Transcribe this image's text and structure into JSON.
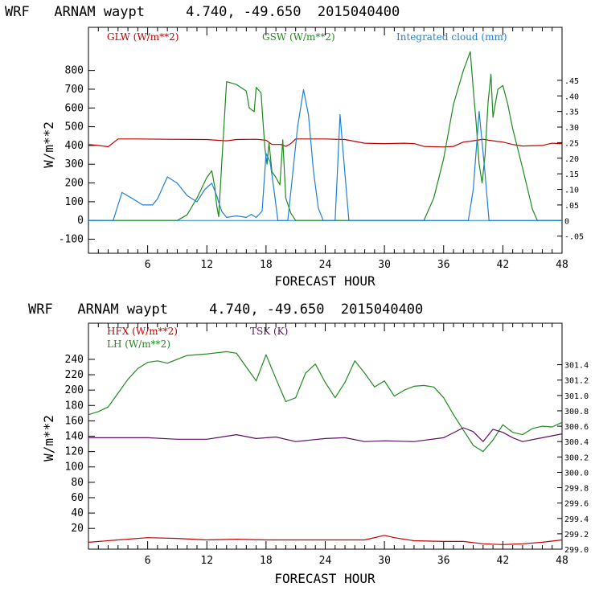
{
  "chart_data": [
    {
      "type": "line",
      "title": "WRF   ARNAM waypt     4.740, -49.650  2015040400",
      "xlabel": "FORECAST HOUR",
      "ylabel": "W/m**2",
      "xlim": [
        0,
        48
      ],
      "ylim": [
        -175,
        1030
      ],
      "y2lim": [
        -0.105,
        0.62
      ],
      "x_ticks": [
        6,
        12,
        18,
        24,
        30,
        36,
        42,
        48
      ],
      "y_ticks": [
        -100,
        0,
        100,
        200,
        300,
        400,
        500,
        600,
        700,
        800
      ],
      "y2_ticks": [
        -0.05,
        0,
        0.05,
        0.1,
        0.15,
        0.2,
        0.25,
        0.3,
        0.35,
        0.4,
        0.45
      ],
      "y2_tick_labels": [
        "-.05",
        "0",
        ".05",
        ".10",
        ".15",
        ".20",
        ".25",
        ".30",
        ".35",
        ".40",
        ".45"
      ],
      "series": [
        {
          "name": "GLW (W/m**2)",
          "color": "#c00000",
          "axis": "left",
          "points": [
            [
              0,
              405
            ],
            [
              1,
              400
            ],
            [
              2,
              393
            ],
            [
              3,
              435
            ],
            [
              5,
              435
            ],
            [
              8,
              433
            ],
            [
              12,
              432
            ],
            [
              13,
              428
            ],
            [
              14,
              425
            ],
            [
              15,
              432
            ],
            [
              17,
              433
            ],
            [
              18,
              428
            ],
            [
              18.6,
              405
            ],
            [
              19.5,
              405
            ],
            [
              20,
              395
            ],
            [
              20.5,
              410
            ],
            [
              21,
              435
            ],
            [
              24,
              435
            ],
            [
              26,
              432
            ],
            [
              28,
              412
            ],
            [
              30,
              410
            ],
            [
              32,
              412
            ],
            [
              33,
              410
            ],
            [
              34,
              395
            ],
            [
              36,
              392
            ],
            [
              37,
              395
            ],
            [
              38,
              418
            ],
            [
              39,
              425
            ],
            [
              40,
              433
            ],
            [
              41,
              425
            ],
            [
              42,
              418
            ],
            [
              43,
              405
            ],
            [
              44,
              397
            ],
            [
              46,
              400
            ],
            [
              47,
              412
            ],
            [
              48,
              410
            ]
          ]
        },
        {
          "name": "GSW (W/m**2)",
          "color": "#1e8a1e",
          "axis": "left",
          "points": [
            [
              0,
              0
            ],
            [
              9,
              0
            ],
            [
              10,
              30
            ],
            [
              11,
              120
            ],
            [
              12,
              230
            ],
            [
              12.5,
              265
            ],
            [
              12.8,
              180
            ],
            [
              13,
              80
            ],
            [
              13.2,
              20
            ],
            [
              13.5,
              300
            ],
            [
              13.8,
              560
            ],
            [
              14,
              740
            ],
            [
              15,
              725
            ],
            [
              16,
              690
            ],
            [
              16.3,
              600
            ],
            [
              16.8,
              580
            ],
            [
              17,
              710
            ],
            [
              17.5,
              680
            ],
            [
              17.7,
              520
            ],
            [
              17.9,
              380
            ],
            [
              18.1,
              300
            ],
            [
              18.3,
              415
            ],
            [
              18.6,
              260
            ],
            [
              19,
              230
            ],
            [
              19.4,
              190
            ],
            [
              19.7,
              430
            ],
            [
              20,
              120
            ],
            [
              20.5,
              40
            ],
            [
              21,
              0
            ],
            [
              34,
              0
            ],
            [
              35,
              120
            ],
            [
              36,
              330
            ],
            [
              37,
              620
            ],
            [
              38,
              800
            ],
            [
              38.7,
              900
            ],
            [
              39,
              700
            ],
            [
              39.3,
              520
            ],
            [
              39.6,
              300
            ],
            [
              39.9,
              200
            ],
            [
              40.2,
              350
            ],
            [
              40.5,
              630
            ],
            [
              40.8,
              780
            ],
            [
              41,
              550
            ],
            [
              41.5,
              700
            ],
            [
              42,
              720
            ],
            [
              42.5,
              620
            ],
            [
              43,
              490
            ],
            [
              44,
              280
            ],
            [
              45,
              60
            ],
            [
              45.5,
              0
            ],
            [
              48,
              0
            ]
          ]
        },
        {
          "name": "Integrated cloud (mm)",
          "color": "#1f7fd6",
          "axis": "right",
          "points": [
            [
              0,
              0
            ],
            [
              2.5,
              0
            ],
            [
              3,
              0.05
            ],
            [
              3.4,
              0.09
            ],
            [
              4.5,
              0.07
            ],
            [
              5.5,
              0.05
            ],
            [
              6.5,
              0.05
            ],
            [
              7,
              0.07
            ],
            [
              8,
              0.14
            ],
            [
              9,
              0.12
            ],
            [
              10,
              0.08
            ],
            [
              11,
              0.06
            ],
            [
              11.8,
              0.1
            ],
            [
              12.5,
              0.12
            ],
            [
              13,
              0.08
            ],
            [
              13.5,
              0.03
            ],
            [
              14,
              0.01
            ],
            [
              15,
              0.015
            ],
            [
              16,
              0.01
            ],
            [
              16.5,
              0.02
            ],
            [
              17,
              0.01
            ],
            [
              17.6,
              0.03
            ],
            [
              18,
              0.215
            ],
            [
              18.4,
              0.19
            ],
            [
              18.8,
              0.1
            ],
            [
              19.2,
              0
            ],
            [
              20.2,
              0
            ],
            [
              20.6,
              0.12
            ],
            [
              21.2,
              0.3
            ],
            [
              21.8,
              0.42
            ],
            [
              22.3,
              0.34
            ],
            [
              22.8,
              0.16
            ],
            [
              23.3,
              0.04
            ],
            [
              23.8,
              0
            ],
            [
              25,
              0
            ],
            [
              25.5,
              0.34
            ],
            [
              26,
              0.15
            ],
            [
              26.4,
              0
            ],
            [
              38.5,
              0
            ],
            [
              39,
              0.1
            ],
            [
              39.6,
              0.35
            ],
            [
              40.2,
              0.15
            ],
            [
              40.6,
              0
            ],
            [
              48,
              0
            ]
          ]
        }
      ]
    },
    {
      "type": "line",
      "title": "WRF   ARNAM waypt     4.740, -49.650  2015040400",
      "xlabel": "FORECAST HOUR",
      "ylabel": "W/m**2",
      "xlim": [
        0,
        48
      ],
      "ylim": [
        -7,
        287
      ],
      "y2lim": [
        299.0,
        301.94
      ],
      "x_ticks": [
        6,
        12,
        18,
        24,
        30,
        36,
        42,
        48
      ],
      "y_ticks": [
        20,
        40,
        60,
        80,
        100,
        120,
        140,
        160,
        180,
        200,
        220,
        240
      ],
      "y2_ticks": [
        299.0,
        299.2,
        299.4,
        299.6,
        299.8,
        300.0,
        300.2,
        300.4,
        300.6,
        300.8,
        301.0,
        301.2,
        301.4
      ],
      "y2_tick_labels": [
        "299.0",
        "299.2",
        "299.4",
        "299.6",
        "299.8",
        "300.0",
        "300.2",
        "300.4",
        "300.6",
        "300.8",
        "301.0",
        "301.2",
        "301.4"
      ],
      "series": [
        {
          "name": "HFX (W/m**2)",
          "color": "#c00000",
          "axis": "left",
          "points": [
            [
              0,
              2
            ],
            [
              3,
              5
            ],
            [
              6,
              8
            ],
            [
              9,
              7
            ],
            [
              12,
              5
            ],
            [
              15,
              6
            ],
            [
              18,
              5
            ],
            [
              24,
              5
            ],
            [
              28,
              5
            ],
            [
              30,
              11
            ],
            [
              31,
              8
            ],
            [
              33,
              4
            ],
            [
              36,
              3
            ],
            [
              38,
              3
            ],
            [
              40,
              0
            ],
            [
              42,
              -1
            ],
            [
              44,
              0
            ],
            [
              46,
              2
            ],
            [
              48,
              5
            ]
          ]
        },
        {
          "name": "LH (W/m**2)",
          "color": "#1e8a1e",
          "axis": "left",
          "points": [
            [
              0,
              168
            ],
            [
              1,
              172
            ],
            [
              2,
              178
            ],
            [
              3,
              196
            ],
            [
              4,
              214
            ],
            [
              5,
              228
            ],
            [
              6,
              236
            ],
            [
              7,
              238
            ],
            [
              8,
              235
            ],
            [
              10,
              245
            ],
            [
              12,
              247
            ],
            [
              14,
              250
            ],
            [
              15,
              248
            ],
            [
              16,
              230
            ],
            [
              17,
              212
            ],
            [
              18,
              246
            ],
            [
              19,
              215
            ],
            [
              20,
              185
            ],
            [
              21,
              190
            ],
            [
              22,
              222
            ],
            [
              23,
              234
            ],
            [
              24,
              210
            ],
            [
              25,
              190
            ],
            [
              26,
              210
            ],
            [
              27,
              238
            ],
            [
              28,
              222
            ],
            [
              29,
              204
            ],
            [
              30,
              212
            ],
            [
              31,
              192
            ],
            [
              32,
              200
            ],
            [
              33,
              205
            ],
            [
              34,
              206
            ],
            [
              35,
              204
            ],
            [
              36,
              190
            ],
            [
              37,
              168
            ],
            [
              38,
              148
            ],
            [
              39,
              128
            ],
            [
              40,
              120
            ],
            [
              41,
              135
            ],
            [
              42,
              155
            ],
            [
              43,
              145
            ],
            [
              44,
              142
            ],
            [
              45,
              150
            ],
            [
              46,
              153
            ],
            [
              47,
              152
            ],
            [
              48,
              158
            ]
          ]
        },
        {
          "name": "TSK (K)",
          "color": "#5a1060",
          "axis": "right",
          "points": [
            [
              0,
              300.45
            ],
            [
              3,
              300.45
            ],
            [
              6,
              300.45
            ],
            [
              9,
              300.43
            ],
            [
              12,
              300.43
            ],
            [
              14,
              300.47
            ],
            [
              15,
              300.49
            ],
            [
              17,
              300.44
            ],
            [
              19,
              300.46
            ],
            [
              21,
              300.4
            ],
            [
              24,
              300.44
            ],
            [
              26,
              300.45
            ],
            [
              28,
              300.4
            ],
            [
              30,
              300.41
            ],
            [
              33,
              300.4
            ],
            [
              36,
              300.45
            ],
            [
              38,
              300.58
            ],
            [
              39,
              300.53
            ],
            [
              40,
              300.4
            ],
            [
              41,
              300.56
            ],
            [
              42,
              300.52
            ],
            [
              43,
              300.45
            ],
            [
              44,
              300.4
            ],
            [
              46,
              300.45
            ],
            [
              48,
              300.5
            ]
          ]
        }
      ]
    }
  ]
}
